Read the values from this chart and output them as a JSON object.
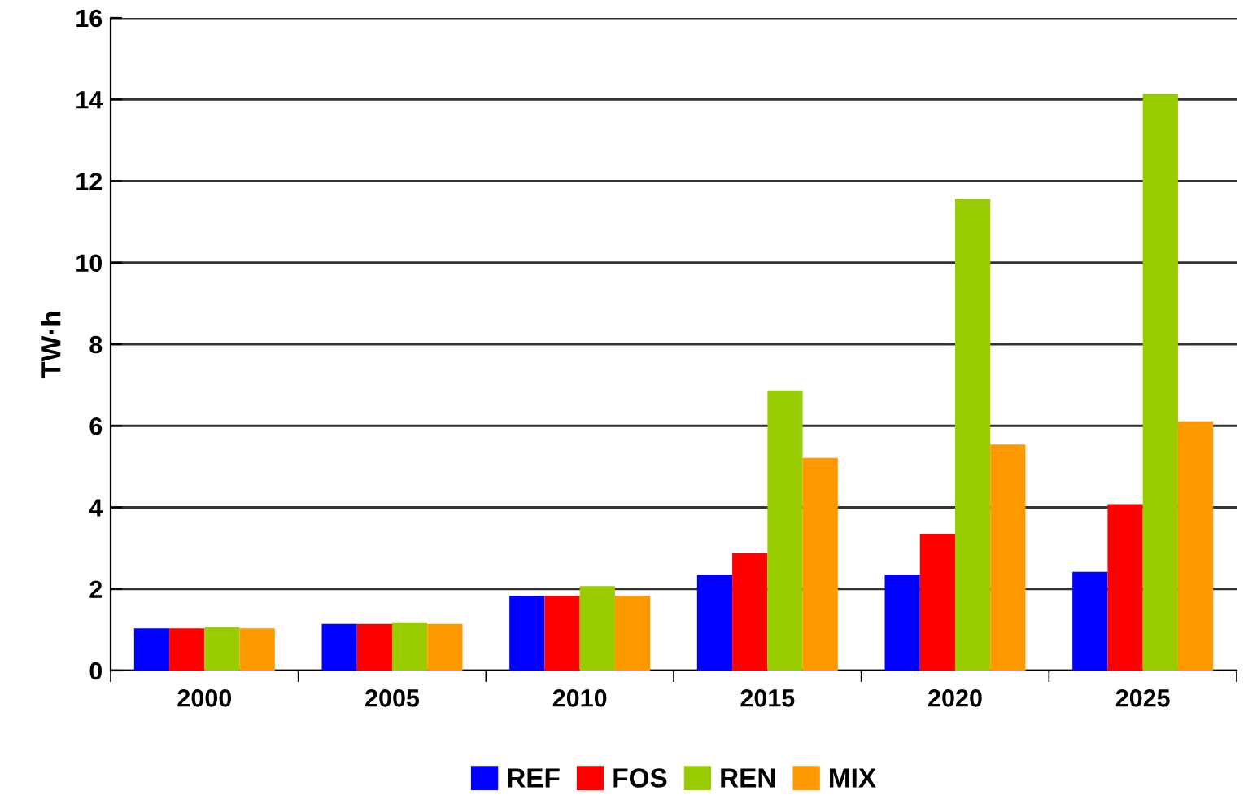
{
  "chart_data": {
    "type": "bar",
    "ylabel": "TW·h",
    "categories": [
      "2000",
      "2005",
      "2010",
      "2015",
      "2020",
      "2025"
    ],
    "series": [
      {
        "name": "REF",
        "color": "#0000ff",
        "values": [
          1.03,
          1.14,
          1.83,
          2.35,
          2.35,
          2.42
        ]
      },
      {
        "name": "FOS",
        "color": "#ff0000",
        "values": [
          1.03,
          1.14,
          1.83,
          2.88,
          3.35,
          4.08
        ]
      },
      {
        "name": "REN",
        "color": "#99cc00",
        "values": [
          1.06,
          1.18,
          2.07,
          6.87,
          11.56,
          14.14
        ]
      },
      {
        "name": "MIX",
        "color": "#ff9900",
        "values": [
          1.03,
          1.14,
          1.83,
          5.21,
          5.54,
          6.11
        ]
      }
    ],
    "ylim": [
      0,
      16
    ],
    "yticks": [
      0,
      2,
      4,
      6,
      8,
      10,
      12,
      14,
      16
    ],
    "grid": "y",
    "legend": "bottom"
  }
}
